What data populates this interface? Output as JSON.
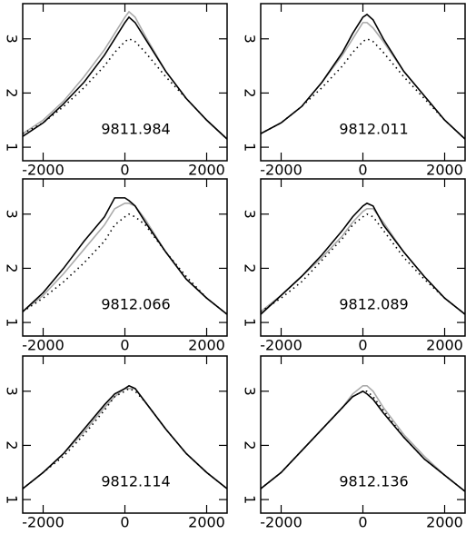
{
  "chart_data": [
    {
      "type": "line",
      "title": "9811.984",
      "xlim": [
        -2500,
        2500
      ],
      "ylim": [
        0.75,
        3.65
      ],
      "xticks": [
        -2000,
        0,
        2000
      ],
      "yticks": [
        1,
        2,
        3
      ],
      "x": [
        -2500,
        -2000,
        -1500,
        -1000,
        -500,
        -250,
        0,
        100,
        250,
        500,
        1000,
        1500,
        2000,
        2500
      ],
      "series": [
        {
          "color": "#aaaaaa",
          "style": "solid",
          "values": [
            1.25,
            1.5,
            1.85,
            2.3,
            2.8,
            3.1,
            3.4,
            3.5,
            3.4,
            3.05,
            2.4,
            1.9,
            1.5,
            1.15
          ]
        },
        {
          "color": "#000000",
          "style": "dotted",
          "values": [
            1.25,
            1.45,
            1.75,
            2.1,
            2.5,
            2.75,
            2.95,
            3.0,
            2.95,
            2.75,
            2.3,
            1.9,
            1.5,
            1.15
          ]
        },
        {
          "color": "#000000",
          "style": "solid",
          "values": [
            1.2,
            1.45,
            1.8,
            2.2,
            2.7,
            3.0,
            3.3,
            3.4,
            3.3,
            3.0,
            2.4,
            1.9,
            1.5,
            1.15
          ]
        }
      ]
    },
    {
      "type": "line",
      "title": "9812.011",
      "xlim": [
        -2500,
        2500
      ],
      "ylim": [
        0.75,
        3.65
      ],
      "xticks": [
        -2000,
        0,
        2000
      ],
      "yticks": [
        1,
        2,
        3
      ],
      "x": [
        -2500,
        -2000,
        -1500,
        -1000,
        -500,
        -250,
        0,
        100,
        250,
        500,
        1000,
        1500,
        2000,
        2500
      ],
      "series": [
        {
          "color": "#aaaaaa",
          "style": "solid",
          "values": [
            1.25,
            1.45,
            1.75,
            2.2,
            2.7,
            3.0,
            3.3,
            3.3,
            3.2,
            2.95,
            2.4,
            1.95,
            1.5,
            1.15
          ]
        },
        {
          "color": "#000000",
          "style": "dotted",
          "values": [
            1.25,
            1.45,
            1.75,
            2.1,
            2.5,
            2.75,
            2.95,
            3.0,
            2.95,
            2.75,
            2.3,
            1.9,
            1.5,
            1.15
          ]
        },
        {
          "color": "#000000",
          "style": "solid",
          "values": [
            1.25,
            1.45,
            1.75,
            2.2,
            2.75,
            3.1,
            3.4,
            3.45,
            3.35,
            3.0,
            2.4,
            1.95,
            1.5,
            1.15
          ]
        }
      ]
    },
    {
      "type": "line",
      "title": "9812.066",
      "xlim": [
        -2500,
        2500
      ],
      "ylim": [
        0.75,
        3.65
      ],
      "xticks": [
        -2000,
        0,
        2000
      ],
      "yticks": [
        1,
        2,
        3
      ],
      "x": [
        -2500,
        -2000,
        -1500,
        -1000,
        -500,
        -250,
        0,
        100,
        250,
        500,
        1000,
        1500,
        2000,
        2500
      ],
      "series": [
        {
          "color": "#aaaaaa",
          "style": "solid",
          "values": [
            1.2,
            1.5,
            1.9,
            2.35,
            2.8,
            3.1,
            3.2,
            3.2,
            3.15,
            2.9,
            2.3,
            1.8,
            1.45,
            1.15
          ]
        },
        {
          "color": "#000000",
          "style": "dotted",
          "values": [
            1.2,
            1.45,
            1.75,
            2.1,
            2.5,
            2.8,
            2.95,
            3.0,
            2.95,
            2.8,
            2.3,
            1.85,
            1.45,
            1.15
          ]
        },
        {
          "color": "#000000",
          "style": "solid",
          "values": [
            1.2,
            1.55,
            2.0,
            2.5,
            2.95,
            3.3,
            3.3,
            3.25,
            3.15,
            2.85,
            2.3,
            1.8,
            1.45,
            1.15
          ]
        }
      ]
    },
    {
      "type": "line",
      "title": "9812.089",
      "xlim": [
        -2500,
        2500
      ],
      "ylim": [
        0.75,
        3.65
      ],
      "xticks": [
        -2000,
        0,
        2000
      ],
      "yticks": [
        1,
        2,
        3
      ],
      "x": [
        -2500,
        -2000,
        -1500,
        -1000,
        -500,
        -250,
        0,
        100,
        250,
        500,
        1000,
        1500,
        2000,
        2500
      ],
      "series": [
        {
          "color": "#aaaaaa",
          "style": "solid",
          "values": [
            1.2,
            1.5,
            1.85,
            2.2,
            2.6,
            2.85,
            3.05,
            3.1,
            3.1,
            2.85,
            2.3,
            1.85,
            1.45,
            1.15
          ]
        },
        {
          "color": "#000000",
          "style": "dotted",
          "values": [
            1.2,
            1.45,
            1.75,
            2.15,
            2.55,
            2.8,
            2.95,
            3.0,
            2.95,
            2.7,
            2.2,
            1.8,
            1.45,
            1.15
          ]
        },
        {
          "color": "#000000",
          "style": "solid",
          "values": [
            1.15,
            1.5,
            1.85,
            2.25,
            2.7,
            2.95,
            3.15,
            3.2,
            3.15,
            2.8,
            2.3,
            1.85,
            1.45,
            1.15
          ]
        }
      ]
    },
    {
      "type": "line",
      "title": "9812.114",
      "xlim": [
        -2500,
        2500
      ],
      "ylim": [
        0.75,
        3.65
      ],
      "xticks": [
        -2000,
        0,
        2000
      ],
      "yticks": [
        1,
        2,
        3
      ],
      "x": [
        -2500,
        -2000,
        -1500,
        -1000,
        -500,
        -250,
        0,
        100,
        250,
        500,
        1000,
        1500,
        2000,
        2500
      ],
      "series": [
        {
          "color": "#aaaaaa",
          "style": "solid",
          "values": [
            1.2,
            1.5,
            1.85,
            2.25,
            2.7,
            2.9,
            3.05,
            3.05,
            3.05,
            2.8,
            2.3,
            1.85,
            1.5,
            1.2
          ]
        },
        {
          "color": "#000000",
          "style": "dotted",
          "values": [
            1.2,
            1.5,
            1.8,
            2.2,
            2.65,
            2.9,
            3.0,
            3.05,
            3.0,
            2.8,
            2.3,
            1.85,
            1.5,
            1.2
          ]
        },
        {
          "color": "#000000",
          "style": "solid",
          "values": [
            1.2,
            1.5,
            1.85,
            2.3,
            2.75,
            2.95,
            3.05,
            3.1,
            3.05,
            2.8,
            2.3,
            1.85,
            1.5,
            1.2
          ]
        }
      ]
    },
    {
      "type": "line",
      "title": "9812.136",
      "xlim": [
        -2500,
        2500
      ],
      "ylim": [
        0.75,
        3.65
      ],
      "xticks": [
        -2000,
        0,
        2000
      ],
      "yticks": [
        1,
        2,
        3
      ],
      "x": [
        -2500,
        -2000,
        -1500,
        -1000,
        -500,
        -250,
        0,
        100,
        250,
        500,
        1000,
        1500,
        2000,
        2500
      ],
      "series": [
        {
          "color": "#aaaaaa",
          "style": "solid",
          "values": [
            1.2,
            1.5,
            1.9,
            2.3,
            2.7,
            2.95,
            3.1,
            3.1,
            3.0,
            2.7,
            2.2,
            1.8,
            1.45,
            1.15
          ]
        },
        {
          "color": "#000000",
          "style": "dotted",
          "values": [
            1.2,
            1.5,
            1.9,
            2.3,
            2.7,
            2.9,
            3.0,
            3.0,
            2.9,
            2.65,
            2.15,
            1.75,
            1.45,
            1.15
          ]
        },
        {
          "color": "#000000",
          "style": "solid",
          "values": [
            1.2,
            1.5,
            1.9,
            2.3,
            2.7,
            2.9,
            3.0,
            2.95,
            2.85,
            2.6,
            2.15,
            1.75,
            1.45,
            1.15
          ]
        }
      ]
    }
  ]
}
